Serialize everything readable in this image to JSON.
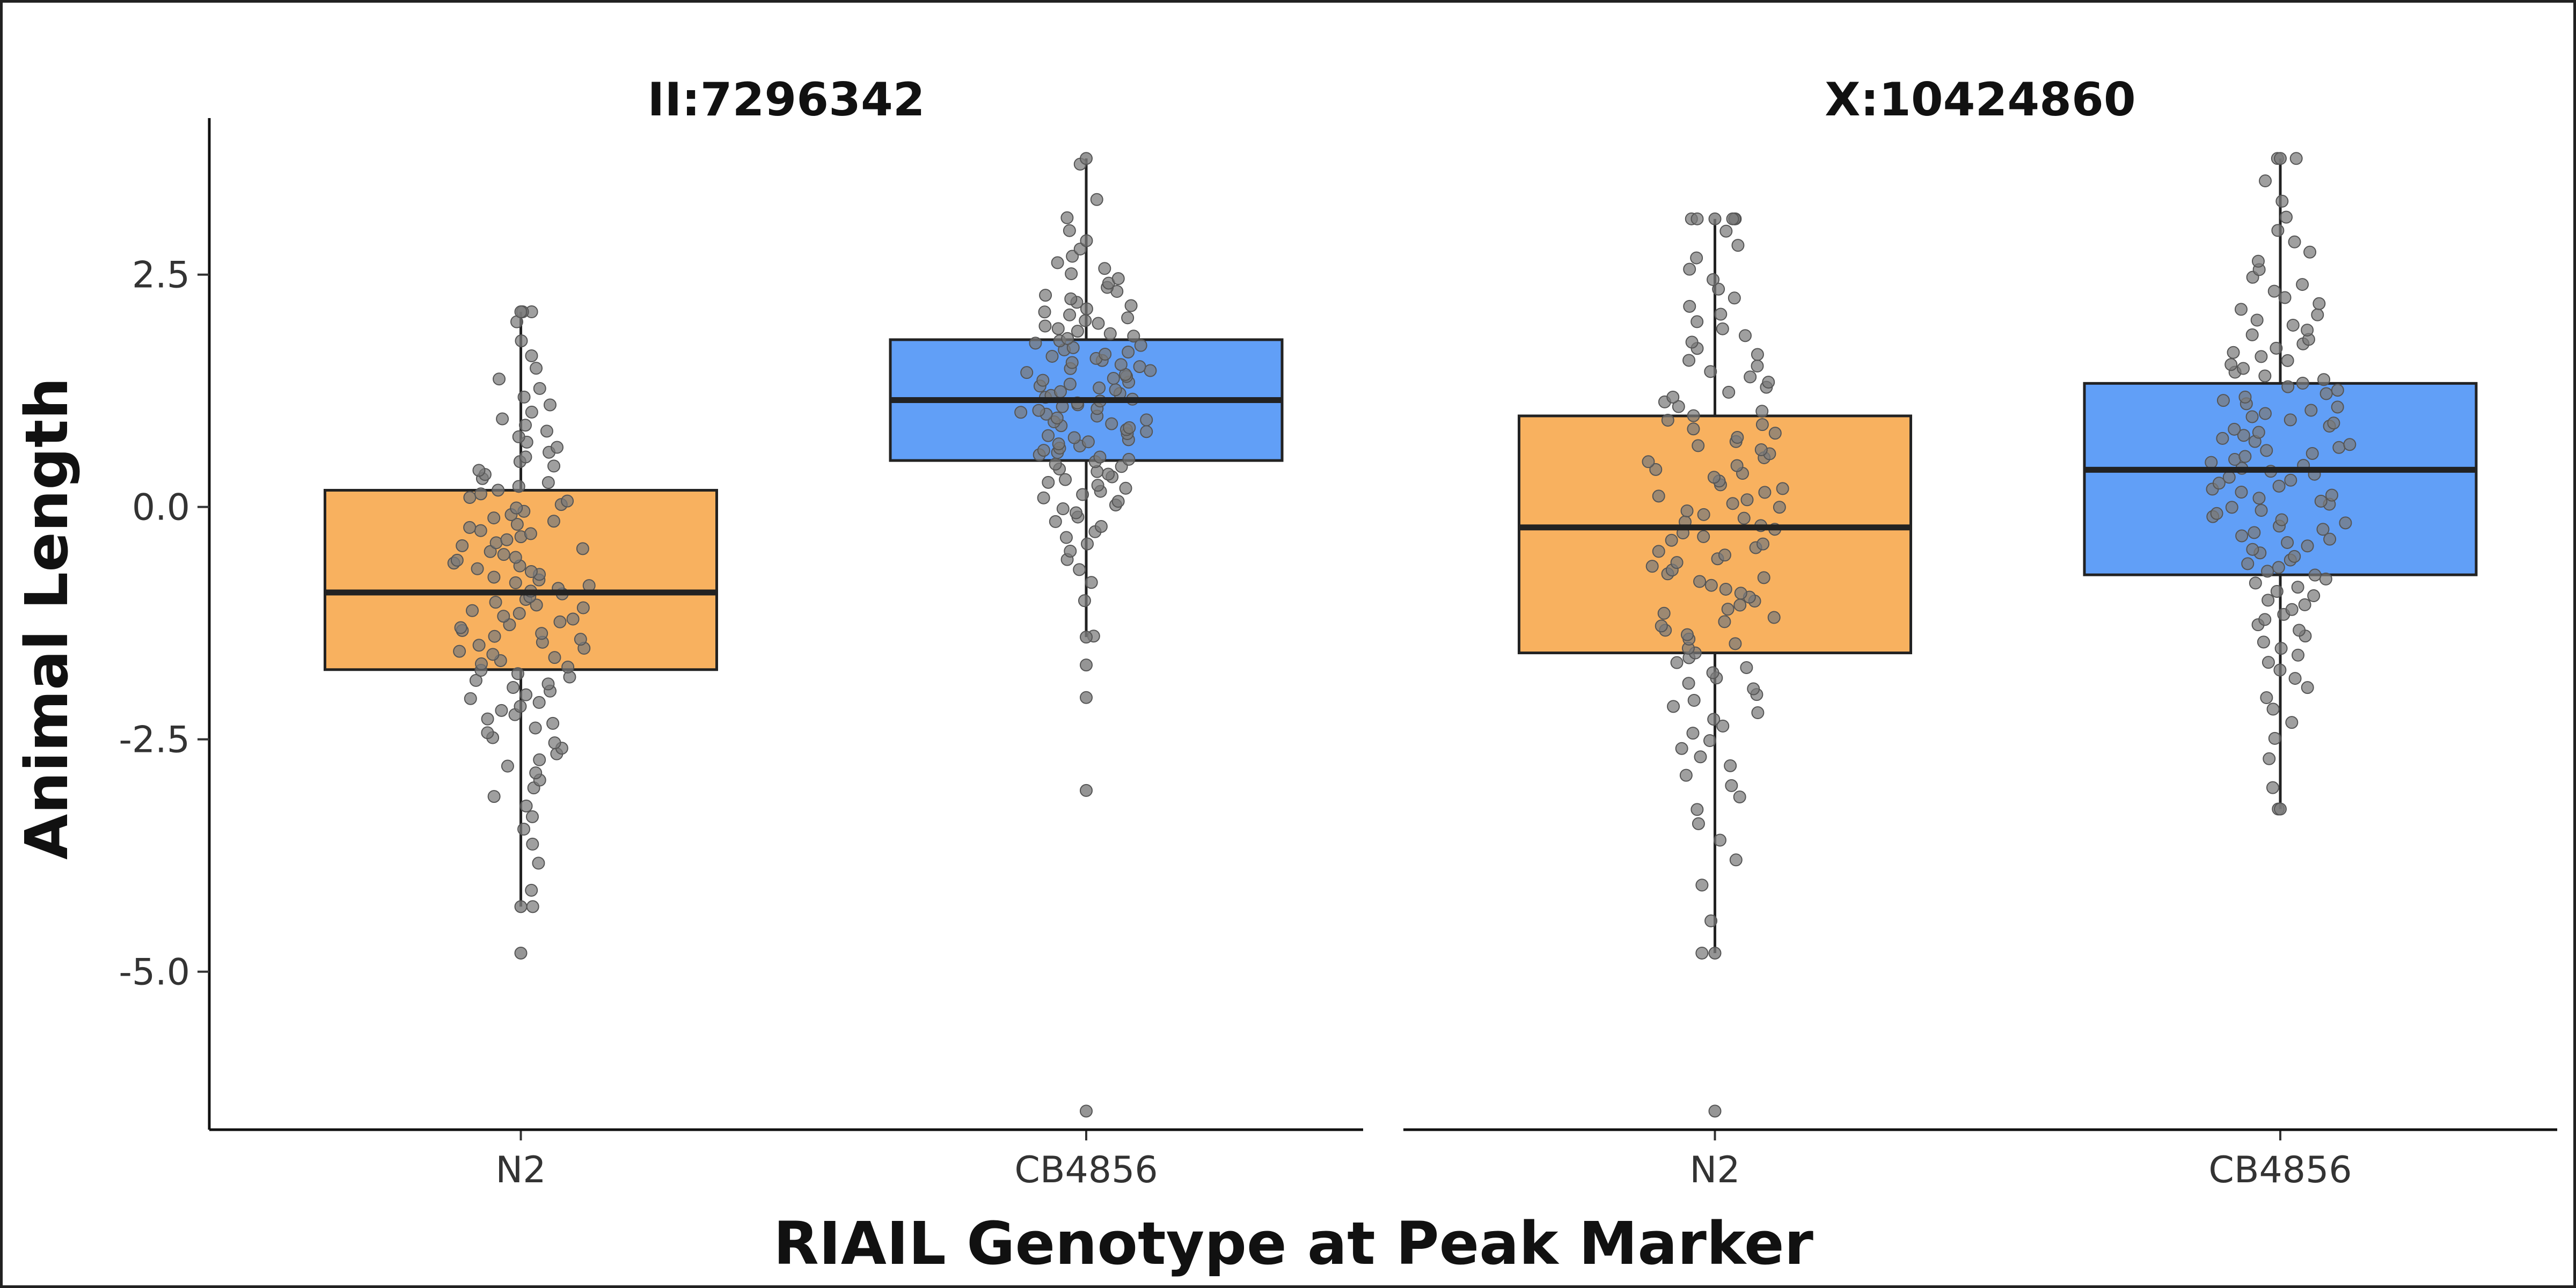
{
  "chart_data": {
    "type": "boxplot",
    "xlabel": "RIAIL Genotype at Peak Marker",
    "ylabel": "Animal Length",
    "ylim": [
      -6.7,
      4.3
    ],
    "yticks": [
      "2.5",
      "0.0",
      "-2.5",
      "-5.0"
    ],
    "ytick_values": [
      2.5,
      0.0,
      -2.5,
      -5.0
    ],
    "grid": false,
    "legend": "none",
    "colors": {
      "N2": "#F8B15F",
      "CB4856": "#619FF7",
      "points": "#777777",
      "box_edge": "#222222"
    },
    "panels": [
      {
        "title": "II:7296342",
        "categories": [
          "N2",
          "CB4856"
        ],
        "boxes": [
          {
            "category": "N2",
            "min": -4.3,
            "q1": -1.75,
            "median": -0.92,
            "q3": 0.18,
            "max": 2.1,
            "outliers": [
              -4.8
            ]
          },
          {
            "category": "CB4856",
            "min": -1.4,
            "q1": 0.5,
            "median": 1.15,
            "q3": 1.8,
            "max": 3.75,
            "outliers": [
              -1.7,
              -2.05,
              -3.05,
              -6.5
            ]
          }
        ]
      },
      {
        "title": "X:10424860",
        "categories": [
          "N2",
          "CB4856"
        ],
        "boxes": [
          {
            "category": "N2",
            "min": -4.8,
            "q1": -1.57,
            "median": -0.22,
            "q3": 0.98,
            "max": 3.1,
            "outliers": [
              -6.5
            ]
          },
          {
            "category": "CB4856",
            "min": -3.25,
            "q1": -0.73,
            "median": 0.4,
            "q3": 1.33,
            "max": 3.75,
            "outliers": []
          }
        ]
      }
    ]
  }
}
